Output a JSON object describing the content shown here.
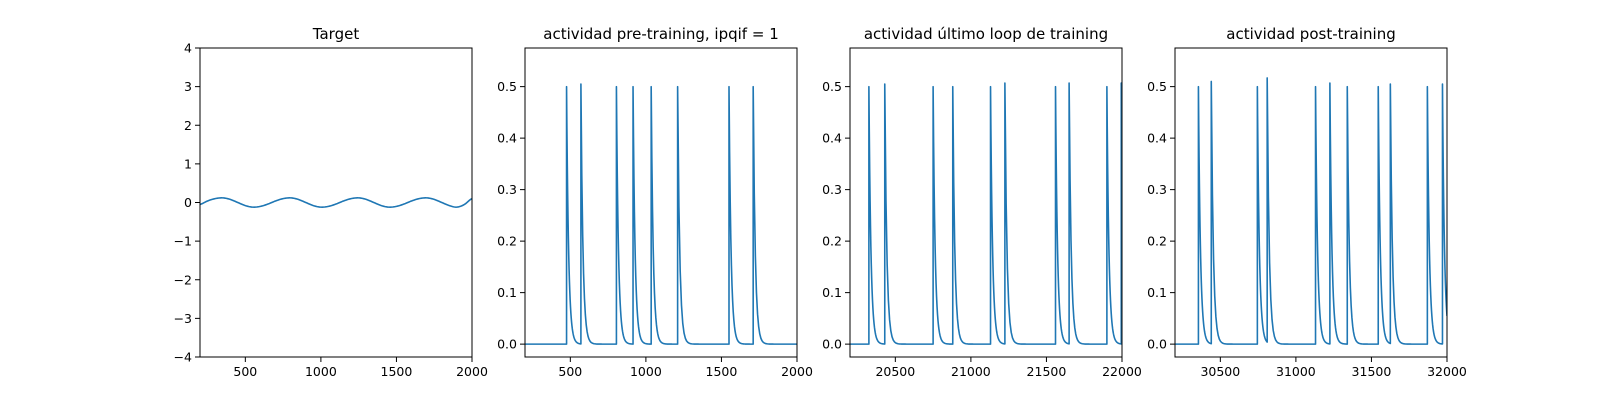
{
  "chart_data": [
    {
      "type": "line",
      "title": "Target",
      "xlabel": "",
      "ylabel": "",
      "xlim": [
        200,
        2000
      ],
      "ylim": [
        -4,
        4
      ],
      "xticks": [
        500,
        1000,
        1500,
        2000
      ],
      "yticks": [
        -4,
        -3,
        -2,
        -1,
        0,
        1,
        2,
        3,
        4
      ],
      "xtick_labels": [
        "500",
        "1000",
        "1500",
        "2000"
      ],
      "ytick_labels": [
        "−4",
        "−3",
        "−2",
        "−1",
        "0",
        "1",
        "2",
        "3",
        "4"
      ],
      "grid": false,
      "series": [
        {
          "color": "#1f77b4",
          "x": [
            200,
            250,
            300,
            350,
            400,
            450,
            500,
            550,
            600,
            650,
            700,
            750,
            800,
            850,
            900,
            950,
            1000,
            1050,
            1100,
            1150,
            1200,
            1250,
            1300,
            1350,
            1400,
            1450,
            1500,
            1550,
            1600,
            1650,
            1700,
            1750,
            1800,
            1850,
            1900,
            1950,
            2000
          ],
          "y": [
            -0.05,
            0.04,
            0.1,
            0.12,
            0.08,
            0.0,
            -0.08,
            -0.12,
            -0.1,
            -0.04,
            0.04,
            0.1,
            0.12,
            0.08,
            0.0,
            -0.08,
            -0.12,
            -0.1,
            -0.04,
            0.04,
            0.1,
            0.12,
            0.08,
            0.0,
            -0.08,
            -0.12,
            -0.1,
            -0.04,
            0.04,
            0.1,
            0.12,
            0.08,
            0.0,
            -0.08,
            -0.12,
            -0.05,
            0.1
          ]
        }
      ]
    },
    {
      "type": "line",
      "title": "actividad pre-training, ipqif = 1",
      "xlabel": "",
      "ylabel": "",
      "xlim": [
        200,
        2000
      ],
      "ylim": [
        -0.025,
        0.575
      ],
      "xticks": [
        500,
        1000,
        1500,
        2000
      ],
      "yticks": [
        0.0,
        0.1,
        0.2,
        0.3,
        0.4,
        0.5
      ],
      "xtick_labels": [
        "500",
        "1000",
        "1500",
        "2000"
      ],
      "ytick_labels": [
        "0.0",
        "0.1",
        "0.2",
        "0.3",
        "0.4",
        "0.5"
      ],
      "grid": false,
      "series": [
        {
          "color": "#1f77b4",
          "spikes": [
            [
              475,
              0.5
            ],
            [
              570,
              0.505
            ],
            [
              805,
              0.5
            ],
            [
              915,
              0.5
            ],
            [
              1035,
              0.5
            ],
            [
              1210,
              0.5
            ],
            [
              1550,
              0.5
            ],
            [
              1710,
              0.5
            ]
          ],
          "baseline": 0.0
        }
      ]
    },
    {
      "type": "line",
      "title": "actividad último loop de training",
      "xlabel": "",
      "ylabel": "",
      "xlim": [
        20200,
        22000
      ],
      "ylim": [
        -0.025,
        0.575
      ],
      "xticks": [
        20500,
        21000,
        21500,
        22000
      ],
      "yticks": [
        0.0,
        0.1,
        0.2,
        0.3,
        0.4,
        0.5
      ],
      "xtick_labels": [
        "20500",
        "21000",
        "21500",
        "22000"
      ],
      "ytick_labels": [
        "0.0",
        "0.1",
        "0.2",
        "0.3",
        "0.4",
        "0.5"
      ],
      "grid": false,
      "series": [
        {
          "color": "#1f77b4",
          "spikes": [
            [
              20325,
              0.5
            ],
            [
              20430,
              0.505
            ],
            [
              20750,
              0.5
            ],
            [
              20880,
              0.5
            ],
            [
              21130,
              0.5
            ],
            [
              21225,
              0.507
            ],
            [
              21560,
              0.5
            ],
            [
              21650,
              0.507
            ],
            [
              21900,
              0.5
            ],
            [
              21995,
              0.507
            ]
          ],
          "baseline": 0.0
        }
      ]
    },
    {
      "type": "line",
      "title": "actividad post-training",
      "xlabel": "",
      "ylabel": "",
      "xlim": [
        30200,
        32000
      ],
      "ylim": [
        -0.025,
        0.575
      ],
      "xticks": [
        30500,
        31000,
        31500,
        32000
      ],
      "yticks": [
        0.0,
        0.1,
        0.2,
        0.3,
        0.4,
        0.5
      ],
      "xtick_labels": [
        "30500",
        "31000",
        "31500",
        "32000"
      ],
      "ytick_labels": [
        "0.0",
        "0.1",
        "0.2",
        "0.3",
        "0.4",
        "0.5"
      ],
      "grid": false,
      "series": [
        {
          "color": "#1f77b4",
          "spikes": [
            [
              30355,
              0.5
            ],
            [
              30440,
              0.51
            ],
            [
              30745,
              0.5
            ],
            [
              30810,
              0.517
            ],
            [
              31130,
              0.5
            ],
            [
              31225,
              0.507
            ],
            [
              31340,
              0.5
            ],
            [
              31545,
              0.5
            ],
            [
              31625,
              0.505
            ],
            [
              31870,
              0.5
            ],
            [
              31970,
              0.505
            ]
          ],
          "baseline": 0.0,
          "end_value": 0.09
        }
      ]
    }
  ]
}
